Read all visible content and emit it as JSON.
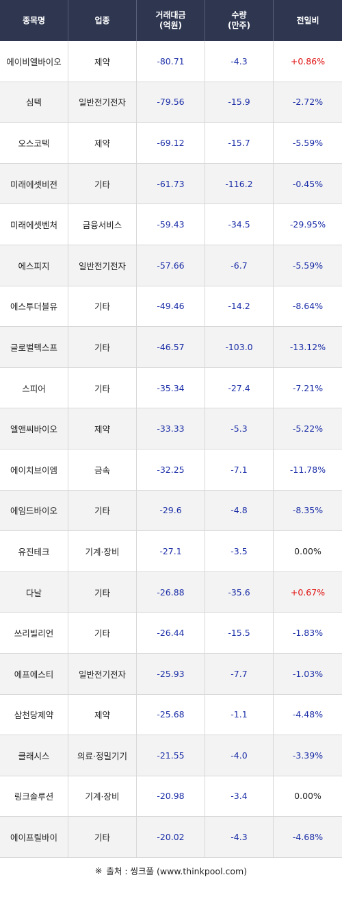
{
  "header": {
    "col1": "종목명",
    "col2": "업종",
    "col3_line1": "거래대금",
    "col3_line2": "(억원)",
    "col4_line1": "수량",
    "col4_line2": "(만주)",
    "col5": "전일비"
  },
  "rows": [
    {
      "name": "에이비엘바이오",
      "sector": "제약",
      "amount": "-80.71",
      "volume": "-4.3",
      "change": "+0.86%",
      "change_sign": "pos"
    },
    {
      "name": "심텍",
      "sector": "일반전기전자",
      "amount": "-79.56",
      "volume": "-15.9",
      "change": "-2.72%",
      "change_sign": "neg"
    },
    {
      "name": "오스코텍",
      "sector": "제약",
      "amount": "-69.12",
      "volume": "-15.7",
      "change": "-5.59%",
      "change_sign": "neg"
    },
    {
      "name": "미래에셋비전",
      "sector": "기타",
      "amount": "-61.73",
      "volume": "-116.2",
      "change": "-0.45%",
      "change_sign": "neg"
    },
    {
      "name": "미래에셋벤처",
      "sector": "금융서비스",
      "amount": "-59.43",
      "volume": "-34.5",
      "change": "-29.95%",
      "change_sign": "neg"
    },
    {
      "name": "에스피지",
      "sector": "일반전기전자",
      "amount": "-57.66",
      "volume": "-6.7",
      "change": "-5.59%",
      "change_sign": "neg"
    },
    {
      "name": "에스투더블유",
      "sector": "기타",
      "amount": "-49.46",
      "volume": "-14.2",
      "change": "-8.64%",
      "change_sign": "neg"
    },
    {
      "name": "글로벌텍스프",
      "sector": "기타",
      "amount": "-46.57",
      "volume": "-103.0",
      "change": "-13.12%",
      "change_sign": "neg"
    },
    {
      "name": "스피어",
      "sector": "기타",
      "amount": "-35.34",
      "volume": "-27.4",
      "change": "-7.21%",
      "change_sign": "neg"
    },
    {
      "name": "엘앤씨바이오",
      "sector": "제약",
      "amount": "-33.33",
      "volume": "-5.3",
      "change": "-5.22%",
      "change_sign": "neg"
    },
    {
      "name": "에이치브이엠",
      "sector": "금속",
      "amount": "-32.25",
      "volume": "-7.1",
      "change": "-11.78%",
      "change_sign": "neg"
    },
    {
      "name": "에임드바이오",
      "sector": "기타",
      "amount": "-29.6",
      "volume": "-4.8",
      "change": "-8.35%",
      "change_sign": "neg"
    },
    {
      "name": "유진테크",
      "sector": "기계·장비",
      "amount": "-27.1",
      "volume": "-3.5",
      "change": "0.00%",
      "change_sign": "zero"
    },
    {
      "name": "다날",
      "sector": "기타",
      "amount": "-26.88",
      "volume": "-35.6",
      "change": "+0.67%",
      "change_sign": "pos"
    },
    {
      "name": "쓰리빌리언",
      "sector": "기타",
      "amount": "-26.44",
      "volume": "-15.5",
      "change": "-1.83%",
      "change_sign": "neg"
    },
    {
      "name": "에프에스티",
      "sector": "일반전기전자",
      "amount": "-25.93",
      "volume": "-7.7",
      "change": "-1.03%",
      "change_sign": "neg"
    },
    {
      "name": "삼천당제약",
      "sector": "제약",
      "amount": "-25.68",
      "volume": "-1.1",
      "change": "-4.48%",
      "change_sign": "neg"
    },
    {
      "name": "클래시스",
      "sector": "의료·정밀기기",
      "amount": "-21.55",
      "volume": "-4.0",
      "change": "-3.39%",
      "change_sign": "neg"
    },
    {
      "name": "링크솔루션",
      "sector": "기계·장비",
      "amount": "-20.98",
      "volume": "-3.4",
      "change": "0.00%",
      "change_sign": "zero"
    },
    {
      "name": "에이프릴바이",
      "sector": "기타",
      "amount": "-20.02",
      "volume": "-4.3",
      "change": "-4.68%",
      "change_sign": "neg"
    }
  ],
  "footer": {
    "mark": "※",
    "text": "출처 : 씽크풀 (www.thinkpool.com)"
  },
  "colors": {
    "header_bg": "#2e3650",
    "negative": "#1c2fa8",
    "positive": "#e01010"
  }
}
